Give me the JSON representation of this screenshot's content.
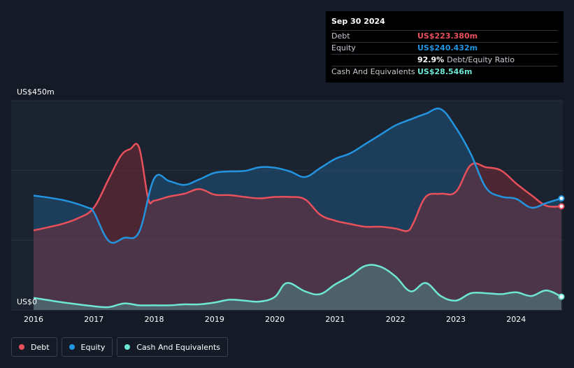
{
  "chart_data": {
    "type": "area",
    "title": "",
    "xlabel": "",
    "ylabel": "",
    "ylim": [
      0,
      450
    ],
    "xlim": [
      2016.0,
      2024.75
    ],
    "y_tick_labels": {
      "top": "US$450m",
      "bottom": "US$0"
    },
    "x_tick_values": [
      2016,
      2017,
      2018,
      2019,
      2020,
      2021,
      2022,
      2023,
      2024
    ],
    "x_tick_labels": [
      "2016",
      "2017",
      "2018",
      "2019",
      "2020",
      "2021",
      "2022",
      "2023",
      "2024"
    ],
    "series": [
      {
        "name": "Debt",
        "color": "#e8505b",
        "x": [
          2016.0,
          2016.25,
          2016.5,
          2016.75,
          2017.0,
          2017.25,
          2017.45,
          2017.6,
          2017.75,
          2017.9,
          2018.0,
          2018.25,
          2018.5,
          2018.75,
          2019.0,
          2019.25,
          2019.5,
          2019.75,
          2020.0,
          2020.25,
          2020.5,
          2020.75,
          2021.0,
          2021.25,
          2021.5,
          2021.75,
          2022.0,
          2022.2,
          2022.3,
          2022.5,
          2022.75,
          2023.0,
          2023.25,
          2023.5,
          2023.75,
          2024.0,
          2024.25,
          2024.5,
          2024.75
        ],
        "values": [
          171,
          178,
          186,
          198,
          220,
          283,
          332,
          346,
          349,
          240,
          235,
          244,
          250,
          260,
          248,
          247,
          243,
          240,
          243,
          243,
          238,
          205,
          192,
          185,
          179,
          179,
          175,
          170,
          188,
          243,
          250,
          254,
          312,
          307,
          300,
          272,
          247,
          224,
          223
        ]
      },
      {
        "name": "Equity",
        "color": "#2394df",
        "x": [
          2016.0,
          2016.5,
          2016.9,
          2017.0,
          2017.25,
          2017.5,
          2017.75,
          2018.0,
          2018.25,
          2018.5,
          2018.75,
          2019.0,
          2019.25,
          2019.5,
          2019.75,
          2020.0,
          2020.25,
          2020.5,
          2020.75,
          2021.0,
          2021.25,
          2021.5,
          2021.75,
          2022.0,
          2022.25,
          2022.5,
          2022.75,
          2023.0,
          2023.25,
          2023.5,
          2023.75,
          2024.0,
          2024.25,
          2024.5,
          2024.75
        ],
        "values": [
          246,
          236,
          220,
          210,
          148,
          155,
          168,
          283,
          277,
          269,
          281,
          295,
          298,
          299,
          307,
          306,
          298,
          286,
          305,
          325,
          337,
          357,
          377,
          397,
          410,
          422,
          432,
          392,
          335,
          263,
          244,
          239,
          220,
          230,
          240
        ]
      },
      {
        "name": "Cash And Equivalents",
        "color": "#6ee6d4",
        "x": [
          2016.0,
          2016.5,
          2017.0,
          2017.25,
          2017.5,
          2017.75,
          2018.0,
          2018.25,
          2018.5,
          2018.75,
          2019.0,
          2019.25,
          2019.5,
          2019.75,
          2020.0,
          2020.2,
          2020.5,
          2020.75,
          2021.0,
          2021.25,
          2021.5,
          2021.75,
          2022.0,
          2022.25,
          2022.5,
          2022.75,
          2023.0,
          2023.25,
          2023.5,
          2023.75,
          2024.0,
          2024.25,
          2024.5,
          2024.75
        ],
        "values": [
          26,
          16,
          8,
          6,
          14,
          10,
          10,
          10,
          12,
          12,
          16,
          22,
          20,
          18,
          28,
          58,
          40,
          34,
          55,
          73,
          95,
          93,
          72,
          40,
          58,
          30,
          20,
          36,
          36,
          34,
          38,
          30,
          42,
          28.5
        ]
      }
    ]
  },
  "tooltip": {
    "date": "Sep 30 2024",
    "debt_label": "Debt",
    "debt_value": "US$223.380m",
    "equity_label": "Equity",
    "equity_value": "US$240.432m",
    "ratio_value": "92.9%",
    "ratio_label": "Debt/Equity Ratio",
    "cash_label": "Cash And Equivalents",
    "cash_value": "US$28.546m"
  },
  "legend": {
    "debt": "Debt",
    "equity": "Equity",
    "cash": "Cash And Equivalents"
  },
  "colors": {
    "background": "#151b26",
    "debt": "#e8505b",
    "equity": "#2394df",
    "cash": "#6ee6d4"
  }
}
